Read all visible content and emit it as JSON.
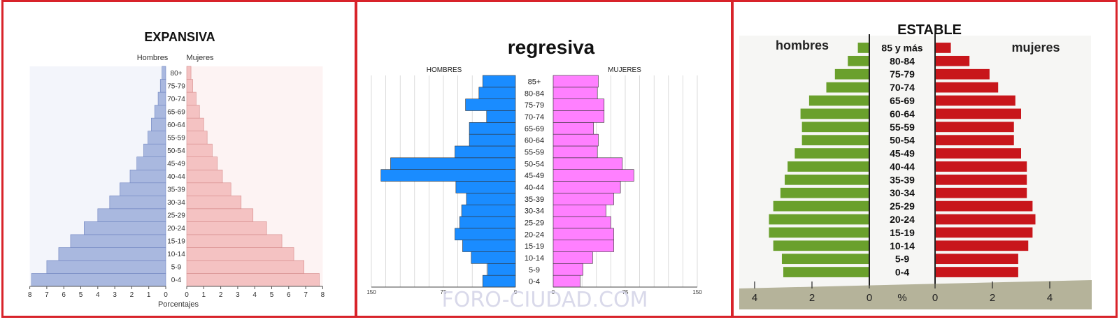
{
  "charts": [
    {
      "title": "EXPANSIVA",
      "left_label": "Hombres",
      "right_label": "Mujeres",
      "xlabel": "Porcentajes",
      "left_ticks": [
        "8",
        "7",
        "6",
        "5",
        "4",
        "3",
        "2",
        "1",
        "0"
      ],
      "right_ticks": [
        "0",
        "1",
        "2",
        "3",
        "4",
        "5",
        "6",
        "7",
        "8"
      ],
      "colors": {
        "men": "#a9b8df",
        "women": "#f4c2c2",
        "men_edge": "#6f84c0",
        "women_edge": "#d58a8a"
      }
    },
    {
      "title": "regresiva",
      "left_label": "HOMBRES",
      "right_label": "MUJERES",
      "left_ticks": [
        "150",
        "75",
        "0"
      ],
      "right_ticks": [
        "0",
        "75",
        "150"
      ],
      "watermark": "FORO-CIUDAD.COM",
      "colors": {
        "men": "#1a8cff",
        "women": "#ff80ff",
        "edge": "#333333"
      }
    },
    {
      "title": "ESTABLE",
      "left_label": "hombres",
      "right_label": "mujeres",
      "ticks": [
        "4",
        "2",
        "0",
        "%",
        "0",
        "2",
        "4"
      ],
      "colors": {
        "men": "#6aa02c",
        "women": "#c8161b",
        "axis": "#222222"
      }
    }
  ],
  "chart_data": [
    {
      "type": "bar",
      "orientation": "horizontal-population-pyramid",
      "title": "EXPANSIVA",
      "xlabel": "Porcentajes",
      "xlim": [
        0,
        8
      ],
      "categories": [
        "0-4",
        "5-9",
        "10-14",
        "15-19",
        "20-24",
        "25-29",
        "30-34",
        "35-39",
        "40-44",
        "45-49",
        "50-54",
        "55-59",
        "60-64",
        "65-69",
        "70-74",
        "75-79",
        "80+"
      ],
      "series": [
        {
          "name": "Hombres",
          "values": [
            7.9,
            7.0,
            6.3,
            5.6,
            4.8,
            4.0,
            3.3,
            2.7,
            2.1,
            1.7,
            1.3,
            1.05,
            0.85,
            0.65,
            0.45,
            0.32,
            0.22
          ]
        },
        {
          "name": "Mujeres",
          "values": [
            7.8,
            6.9,
            6.3,
            5.6,
            4.7,
            3.9,
            3.2,
            2.6,
            2.1,
            1.8,
            1.5,
            1.2,
            1.0,
            0.75,
            0.55,
            0.35,
            0.25
          ]
        }
      ]
    },
    {
      "type": "bar",
      "orientation": "horizontal-population-pyramid",
      "title": "regresiva",
      "xlim": [
        0,
        150
      ],
      "categories": [
        "0-4",
        "5-9",
        "10-14",
        "15-19",
        "20-24",
        "25-29",
        "30-34",
        "35-39",
        "40-44",
        "45-49",
        "50-54",
        "55-59",
        "60-64",
        "65-69",
        "70-74",
        "75-79",
        "80-84",
        "85+"
      ],
      "series": [
        {
          "name": "HOMBRES",
          "values": [
            34,
            29,
            46,
            55,
            63,
            58,
            56,
            51,
            62,
            140,
            130,
            63,
            48,
            48,
            30,
            52,
            38,
            34
          ]
        },
        {
          "name": "MUJERES",
          "values": [
            28,
            31,
            41,
            63,
            63,
            60,
            55,
            63,
            70,
            84,
            72,
            46,
            47,
            42,
            53,
            53,
            46,
            47
          ]
        }
      ]
    },
    {
      "type": "bar",
      "orientation": "horizontal-population-pyramid",
      "title": "ESTABLE",
      "xlabel": "%",
      "xlim": [
        0,
        4
      ],
      "categories": [
        "0-4",
        "5-9",
        "10-14",
        "15-19",
        "20-24",
        "25-29",
        "30-34",
        "35-39",
        "40-44",
        "45-49",
        "50-54",
        "55-59",
        "60-64",
        "65-69",
        "70-74",
        "75-79",
        "80-84",
        "85 y más"
      ],
      "series": [
        {
          "name": "hombres",
          "values": [
            3.0,
            3.05,
            3.35,
            3.5,
            3.5,
            3.35,
            3.1,
            2.95,
            2.85,
            2.6,
            2.35,
            2.35,
            2.4,
            2.1,
            1.5,
            1.2,
            0.75,
            0.4
          ]
        },
        {
          "name": "mujeres",
          "values": [
            2.9,
            2.9,
            3.25,
            3.4,
            3.5,
            3.4,
            3.2,
            3.2,
            3.2,
            3.0,
            2.75,
            2.75,
            3.0,
            2.8,
            2.2,
            1.9,
            1.2,
            0.55
          ]
        }
      ]
    }
  ]
}
